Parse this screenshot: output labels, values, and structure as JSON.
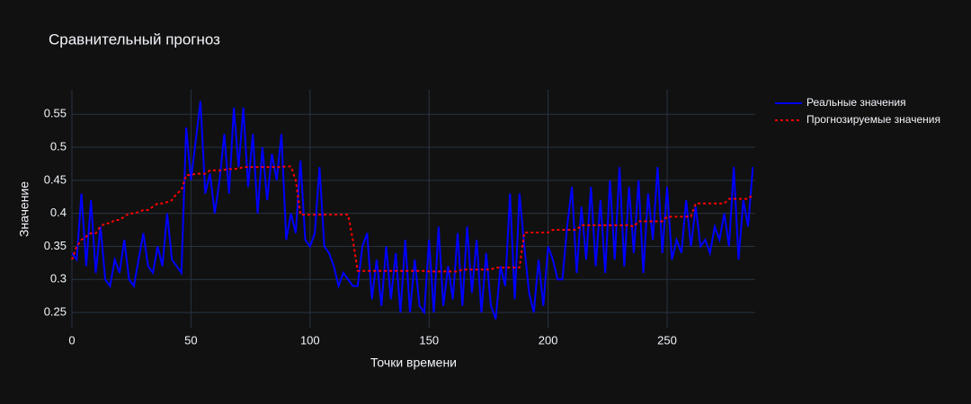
{
  "chart_data": {
    "type": "line",
    "title": "Сравнительный прогноз",
    "x_label": "Точки времени",
    "y_label": "Значение",
    "x": [
      0,
      2,
      4,
      6,
      8,
      10,
      12,
      14,
      16,
      18,
      20,
      22,
      24,
      26,
      28,
      30,
      32,
      34,
      36,
      38,
      40,
      42,
      44,
      46,
      48,
      50,
      52,
      54,
      56,
      58,
      60,
      62,
      64,
      66,
      68,
      70,
      72,
      74,
      76,
      78,
      80,
      82,
      84,
      86,
      88,
      90,
      92,
      94,
      96,
      98,
      100,
      102,
      104,
      106,
      108,
      110,
      112,
      114,
      116,
      118,
      120,
      122,
      124,
      126,
      128,
      130,
      132,
      134,
      136,
      138,
      140,
      142,
      144,
      146,
      148,
      150,
      152,
      154,
      156,
      158,
      160,
      162,
      164,
      166,
      168,
      170,
      172,
      174,
      176,
      178,
      180,
      182,
      184,
      186,
      188,
      190,
      192,
      194,
      196,
      198,
      200,
      202,
      204,
      206,
      208,
      210,
      212,
      214,
      216,
      218,
      220,
      222,
      224,
      226,
      228,
      230,
      232,
      234,
      236,
      238,
      240,
      242,
      244,
      246,
      248,
      250,
      252,
      254,
      256,
      258,
      260,
      262,
      264,
      266,
      268,
      270,
      272,
      274,
      276,
      278,
      280,
      282,
      284,
      286
    ],
    "series": [
      {
        "name": "Реальные значения",
        "color": "#0000ff",
        "dash": "solid",
        "values": [
          0.34,
          0.33,
          0.43,
          0.32,
          0.42,
          0.31,
          0.38,
          0.3,
          0.29,
          0.33,
          0.31,
          0.36,
          0.3,
          0.29,
          0.33,
          0.37,
          0.32,
          0.31,
          0.35,
          0.32,
          0.4,
          0.33,
          0.32,
          0.31,
          0.53,
          0.45,
          0.51,
          0.57,
          0.43,
          0.46,
          0.4,
          0.45,
          0.52,
          0.43,
          0.56,
          0.47,
          0.56,
          0.44,
          0.52,
          0.4,
          0.5,
          0.42,
          0.49,
          0.45,
          0.52,
          0.36,
          0.4,
          0.37,
          0.48,
          0.36,
          0.35,
          0.37,
          0.47,
          0.35,
          0.34,
          0.32,
          0.29,
          0.31,
          0.3,
          0.29,
          0.29,
          0.35,
          0.37,
          0.27,
          0.33,
          0.26,
          0.35,
          0.27,
          0.34,
          0.25,
          0.36,
          0.25,
          0.33,
          0.26,
          0.25,
          0.36,
          0.25,
          0.38,
          0.26,
          0.32,
          0.27,
          0.37,
          0.26,
          0.38,
          0.28,
          0.36,
          0.25,
          0.34,
          0.26,
          0.24,
          0.32,
          0.29,
          0.43,
          0.27,
          0.43,
          0.35,
          0.28,
          0.25,
          0.33,
          0.26,
          0.35,
          0.33,
          0.3,
          0.3,
          0.38,
          0.44,
          0.31,
          0.41,
          0.33,
          0.44,
          0.32,
          0.42,
          0.31,
          0.45,
          0.33,
          0.47,
          0.32,
          0.44,
          0.34,
          0.45,
          0.31,
          0.43,
          0.36,
          0.47,
          0.34,
          0.44,
          0.33,
          0.36,
          0.34,
          0.42,
          0.35,
          0.41,
          0.35,
          0.36,
          0.34,
          0.38,
          0.36,
          0.4,
          0.35,
          0.47,
          0.33,
          0.42,
          0.38,
          0.47
        ]
      },
      {
        "name": "Прогнозируемые значения",
        "color": "#ff0000",
        "dash": "dot",
        "values": [
          0.33,
          0.35,
          0.36,
          0.365,
          0.37,
          0.37,
          0.38,
          0.385,
          0.385,
          0.39,
          0.39,
          0.395,
          0.4,
          0.4,
          0.402,
          0.405,
          0.405,
          0.41,
          0.415,
          0.415,
          0.417,
          0.42,
          0.43,
          0.435,
          0.458,
          0.458,
          0.46,
          0.46,
          0.46,
          0.465,
          0.465,
          0.465,
          0.466,
          0.467,
          0.467,
          0.468,
          0.47,
          0.47,
          0.47,
          0.47,
          0.47,
          0.47,
          0.47,
          0.47,
          0.47,
          0.471,
          0.471,
          0.45,
          0.398,
          0.398,
          0.398,
          0.398,
          0.398,
          0.398,
          0.398,
          0.398,
          0.398,
          0.398,
          0.398,
          0.36,
          0.313,
          0.313,
          0.313,
          0.313,
          0.313,
          0.313,
          0.313,
          0.313,
          0.313,
          0.313,
          0.313,
          0.313,
          0.313,
          0.313,
          0.313,
          0.312,
          0.312,
          0.312,
          0.312,
          0.312,
          0.312,
          0.312,
          0.315,
          0.315,
          0.315,
          0.315,
          0.315,
          0.315,
          0.315,
          0.318,
          0.318,
          0.318,
          0.318,
          0.318,
          0.318,
          0.371,
          0.371,
          0.371,
          0.371,
          0.371,
          0.371,
          0.375,
          0.375,
          0.375,
          0.375,
          0.375,
          0.375,
          0.382,
          0.382,
          0.382,
          0.382,
          0.382,
          0.382,
          0.382,
          0.382,
          0.382,
          0.382,
          0.382,
          0.38,
          0.388,
          0.388,
          0.388,
          0.388,
          0.388,
          0.388,
          0.395,
          0.395,
          0.395,
          0.395,
          0.395,
          0.395,
          0.415,
          0.415,
          0.415,
          0.415,
          0.415,
          0.415,
          0.415,
          0.422,
          0.422,
          0.422,
          0.422,
          0.422,
          0.428
        ]
      }
    ],
    "xlim": [
      0,
      287
    ],
    "ylim": [
      0.227,
      0.587
    ],
    "xticks": [
      0,
      50,
      100,
      150,
      200,
      250
    ],
    "yticks": [
      0.25,
      0.3,
      0.35,
      0.4,
      0.45,
      0.5,
      0.55
    ],
    "grid": true,
    "legend": "right"
  }
}
